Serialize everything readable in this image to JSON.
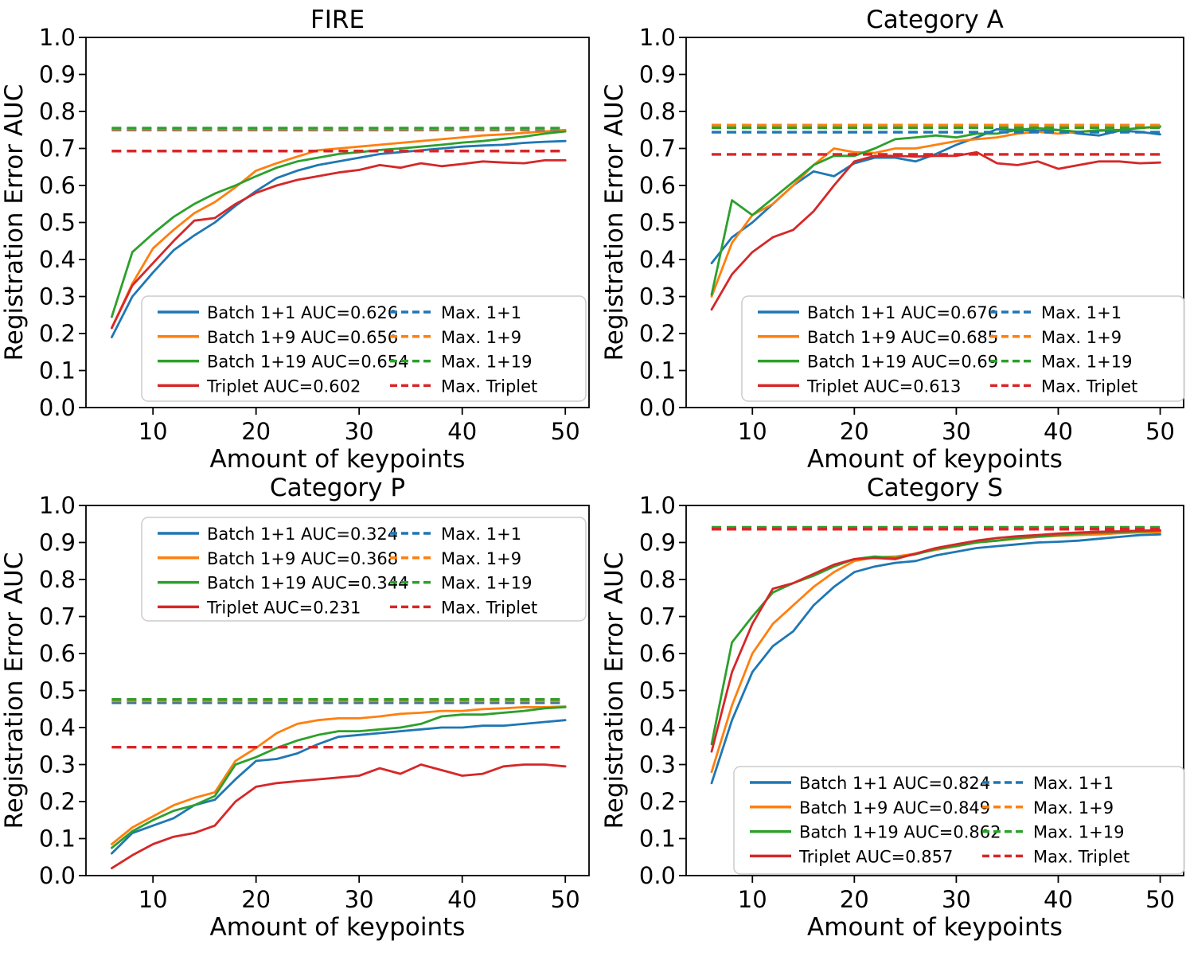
{
  "figure": {
    "background": "#ffffff"
  },
  "colors": {
    "batch11": "#1f77b4",
    "batch19": "#ff7f0e",
    "batch119": "#2ca02c",
    "triplet": "#d62728"
  },
  "chart_data": [
    {
      "type": "line",
      "title": "FIRE",
      "xlabel": "Amount of keypoints",
      "ylabel": "Registration Error AUC",
      "xlim": [
        3.5,
        52.3
      ],
      "ylim": [
        0,
        1
      ],
      "grid": false,
      "legend_position": "lower right",
      "xticks": [
        10,
        20,
        30,
        40,
        50
      ],
      "xticklabels": [
        "10",
        "20",
        "30",
        "40",
        "50"
      ],
      "yticks": [
        0.0,
        0.1,
        0.2,
        0.3,
        0.4,
        0.5,
        0.6,
        0.7,
        0.8,
        0.9,
        1.0
      ],
      "yticklabels": [
        "0.0",
        "0.1",
        "0.2",
        "0.3",
        "0.4",
        "0.5",
        "0.6",
        "0.7",
        "0.8",
        "0.9",
        "1.0"
      ],
      "x": [
        6,
        8,
        10,
        12,
        14,
        16,
        18,
        20,
        22,
        24,
        26,
        28,
        30,
        32,
        34,
        36,
        38,
        40,
        42,
        44,
        46,
        48,
        50
      ],
      "series": [
        {
          "name": "Batch 1+1 AUC=0.626",
          "color": "#1f77b4",
          "values": [
            0.19,
            0.3,
            0.365,
            0.425,
            0.465,
            0.5,
            0.545,
            0.585,
            0.62,
            0.64,
            0.655,
            0.665,
            0.675,
            0.685,
            0.69,
            0.695,
            0.7,
            0.705,
            0.708,
            0.71,
            0.715,
            0.718,
            0.72
          ]
        },
        {
          "name": "Batch 1+9 AUC=0.656",
          "color": "#ff7f0e",
          "values": [
            0.215,
            0.335,
            0.43,
            0.48,
            0.525,
            0.555,
            0.595,
            0.64,
            0.66,
            0.678,
            0.695,
            0.7,
            0.705,
            0.71,
            0.715,
            0.72,
            0.725,
            0.73,
            0.735,
            0.738,
            0.742,
            0.746,
            0.75
          ]
        },
        {
          "name": "Batch 1+19 AUC=0.654",
          "color": "#2ca02c",
          "values": [
            0.245,
            0.42,
            0.47,
            0.515,
            0.55,
            0.578,
            0.6,
            0.625,
            0.648,
            0.665,
            0.675,
            0.685,
            0.69,
            0.696,
            0.7,
            0.705,
            0.71,
            0.716,
            0.72,
            0.726,
            0.732,
            0.74,
            0.746
          ]
        },
        {
          "name": "Triplet AUC=0.602",
          "color": "#d62728",
          "values": [
            0.215,
            0.33,
            0.39,
            0.45,
            0.505,
            0.512,
            0.55,
            0.58,
            0.6,
            0.615,
            0.625,
            0.635,
            0.642,
            0.655,
            0.648,
            0.66,
            0.652,
            0.658,
            0.665,
            0.662,
            0.66,
            0.668,
            0.668
          ]
        }
      ],
      "max_lines": [
        {
          "name": "Max. 1+1",
          "color": "#1f77b4",
          "value": 0.75
        },
        {
          "name": "Max. 1+9",
          "color": "#ff7f0e",
          "value": 0.752
        },
        {
          "name": "Max. 1+19",
          "color": "#2ca02c",
          "value": 0.755
        },
        {
          "name": "Max. Triplet",
          "color": "#d62728",
          "value": 0.693
        }
      ]
    },
    {
      "type": "line",
      "title": "Category A",
      "xlabel": "Amount of keypoints",
      "ylabel": "Registration Error AUC",
      "xlim": [
        3.5,
        52.3
      ],
      "ylim": [
        0,
        1
      ],
      "grid": false,
      "legend_position": "lower right",
      "xticks": [
        10,
        20,
        30,
        40,
        50
      ],
      "xticklabels": [
        "10",
        "20",
        "30",
        "40",
        "50"
      ],
      "yticks": [
        0.0,
        0.1,
        0.2,
        0.3,
        0.4,
        0.5,
        0.6,
        0.7,
        0.8,
        0.9,
        1.0
      ],
      "yticklabels": [
        "0.0",
        "0.1",
        "0.2",
        "0.3",
        "0.4",
        "0.5",
        "0.6",
        "0.7",
        "0.8",
        "0.9",
        "1.0"
      ],
      "x": [
        6,
        8,
        10,
        12,
        14,
        16,
        18,
        20,
        22,
        24,
        26,
        28,
        30,
        32,
        34,
        36,
        38,
        40,
        42,
        44,
        46,
        48,
        50
      ],
      "series": [
        {
          "name": "Batch 1+1 AUC=0.676",
          "color": "#1f77b4",
          "values": [
            0.39,
            0.46,
            0.5,
            0.55,
            0.6,
            0.638,
            0.625,
            0.66,
            0.675,
            0.675,
            0.665,
            0.685,
            0.71,
            0.73,
            0.752,
            0.75,
            0.748,
            0.75,
            0.74,
            0.735,
            0.748,
            0.745,
            0.738
          ]
        },
        {
          "name": "Batch 1+9 AUC=0.685",
          "color": "#ff7f0e",
          "values": [
            0.3,
            0.445,
            0.52,
            0.55,
            0.6,
            0.655,
            0.7,
            0.69,
            0.688,
            0.7,
            0.7,
            0.71,
            0.72,
            0.725,
            0.73,
            0.74,
            0.745,
            0.74,
            0.745,
            0.75,
            0.75,
            0.755,
            0.758
          ]
        },
        {
          "name": "Batch 1+19 AUC=0.69",
          "color": "#2ca02c",
          "values": [
            0.305,
            0.56,
            0.52,
            0.565,
            0.61,
            0.655,
            0.68,
            0.68,
            0.7,
            0.725,
            0.73,
            0.735,
            0.73,
            0.74,
            0.74,
            0.75,
            0.755,
            0.75,
            0.745,
            0.748,
            0.75,
            0.755,
            0.76
          ]
        },
        {
          "name": "Triplet AUC=0.613",
          "color": "#d62728",
          "values": [
            0.265,
            0.36,
            0.42,
            0.46,
            0.48,
            0.53,
            0.6,
            0.665,
            0.68,
            0.68,
            0.678,
            0.68,
            0.68,
            0.69,
            0.66,
            0.655,
            0.665,
            0.645,
            0.655,
            0.665,
            0.665,
            0.66,
            0.662
          ]
        }
      ],
      "max_lines": [
        {
          "name": "Max. 1+1",
          "color": "#1f77b4",
          "value": 0.744
        },
        {
          "name": "Max. 1+9",
          "color": "#ff7f0e",
          "value": 0.763
        },
        {
          "name": "Max. 1+19",
          "color": "#2ca02c",
          "value": 0.756
        },
        {
          "name": "Max. Triplet",
          "color": "#d62728",
          "value": 0.684
        }
      ]
    },
    {
      "type": "line",
      "title": "Category P",
      "xlabel": "Amount of keypoints",
      "ylabel": "Registration Error AUC",
      "xlim": [
        3.5,
        52.3
      ],
      "ylim": [
        0,
        1
      ],
      "grid": false,
      "legend_position": "upper right",
      "xticks": [
        10,
        20,
        30,
        40,
        50
      ],
      "xticklabels": [
        "10",
        "20",
        "30",
        "40",
        "50"
      ],
      "yticks": [
        0.0,
        0.1,
        0.2,
        0.3,
        0.4,
        0.5,
        0.6,
        0.7,
        0.8,
        0.9,
        1.0
      ],
      "yticklabels": [
        "0.0",
        "0.1",
        "0.2",
        "0.3",
        "0.4",
        "0.5",
        "0.6",
        "0.7",
        "0.8",
        "0.9",
        "1.0"
      ],
      "x": [
        6,
        8,
        10,
        12,
        14,
        16,
        18,
        20,
        22,
        24,
        26,
        28,
        30,
        32,
        34,
        36,
        38,
        40,
        42,
        44,
        46,
        48,
        50
      ],
      "series": [
        {
          "name": "Batch 1+1 AUC=0.324",
          "color": "#1f77b4",
          "values": [
            0.06,
            0.115,
            0.135,
            0.155,
            0.19,
            0.205,
            0.26,
            0.31,
            0.315,
            0.33,
            0.355,
            0.375,
            0.38,
            0.385,
            0.39,
            0.395,
            0.4,
            0.4,
            0.405,
            0.405,
            0.41,
            0.415,
            0.42
          ]
        },
        {
          "name": "Batch 1+9 AUC=0.368",
          "color": "#ff7f0e",
          "values": [
            0.085,
            0.13,
            0.16,
            0.19,
            0.21,
            0.225,
            0.31,
            0.345,
            0.385,
            0.41,
            0.42,
            0.425,
            0.425,
            0.43,
            0.437,
            0.44,
            0.445,
            0.445,
            0.45,
            0.452,
            0.455,
            0.455,
            0.457
          ]
        },
        {
          "name": "Batch 1+19 AUC=0.344",
          "color": "#2ca02c",
          "values": [
            0.075,
            0.12,
            0.15,
            0.175,
            0.19,
            0.215,
            0.3,
            0.32,
            0.345,
            0.365,
            0.38,
            0.39,
            0.39,
            0.395,
            0.4,
            0.41,
            0.43,
            0.435,
            0.435,
            0.44,
            0.445,
            0.452,
            0.455
          ]
        },
        {
          "name": "Triplet AUC=0.231",
          "color": "#d62728",
          "values": [
            0.02,
            0.055,
            0.085,
            0.105,
            0.115,
            0.135,
            0.2,
            0.24,
            0.25,
            0.255,
            0.26,
            0.265,
            0.27,
            0.29,
            0.275,
            0.3,
            0.285,
            0.27,
            0.275,
            0.295,
            0.3,
            0.3,
            0.295
          ]
        }
      ],
      "max_lines": [
        {
          "name": "Max. 1+1",
          "color": "#1f77b4",
          "value": 0.467
        },
        {
          "name": "Max. 1+9",
          "color": "#ff7f0e",
          "value": 0.472
        },
        {
          "name": "Max. 1+19",
          "color": "#2ca02c",
          "value": 0.476
        },
        {
          "name": "Max. Triplet",
          "color": "#d62728",
          "value": 0.347
        }
      ]
    },
    {
      "type": "line",
      "title": "Category S",
      "xlabel": "Amount of keypoints",
      "ylabel": "Registration Error AUC",
      "xlim": [
        3.5,
        52.3
      ],
      "ylim": [
        0,
        1
      ],
      "grid": false,
      "legend_position": "lower right",
      "xticks": [
        10,
        20,
        30,
        40,
        50
      ],
      "xticklabels": [
        "10",
        "20",
        "30",
        "40",
        "50"
      ],
      "yticks": [
        0.0,
        0.1,
        0.2,
        0.3,
        0.4,
        0.5,
        0.6,
        0.7,
        0.8,
        0.9,
        1.0
      ],
      "yticklabels": [
        "0.0",
        "0.1",
        "0.2",
        "0.3",
        "0.4",
        "0.5",
        "0.6",
        "0.7",
        "0.8",
        "0.9",
        "1.0"
      ],
      "x": [
        6,
        8,
        10,
        12,
        14,
        16,
        18,
        20,
        22,
        24,
        26,
        28,
        30,
        32,
        34,
        36,
        38,
        40,
        42,
        44,
        46,
        48,
        50
      ],
      "series": [
        {
          "name": "Batch 1+1 AUC=0.824",
          "color": "#1f77b4",
          "values": [
            0.25,
            0.42,
            0.55,
            0.62,
            0.66,
            0.73,
            0.78,
            0.82,
            0.835,
            0.845,
            0.85,
            0.865,
            0.875,
            0.885,
            0.89,
            0.895,
            0.9,
            0.902,
            0.905,
            0.91,
            0.915,
            0.92,
            0.922
          ]
        },
        {
          "name": "Batch 1+9 AUC=0.849",
          "color": "#ff7f0e",
          "values": [
            0.28,
            0.46,
            0.6,
            0.68,
            0.73,
            0.78,
            0.82,
            0.85,
            0.86,
            0.862,
            0.87,
            0.88,
            0.89,
            0.9,
            0.905,
            0.91,
            0.915,
            0.918,
            0.92,
            0.922,
            0.925,
            0.927,
            0.928
          ]
        },
        {
          "name": "Batch 1+19 AUC=0.862",
          "color": "#2ca02c",
          "values": [
            0.355,
            0.63,
            0.7,
            0.765,
            0.79,
            0.81,
            0.835,
            0.855,
            0.862,
            0.858,
            0.868,
            0.882,
            0.89,
            0.9,
            0.905,
            0.912,
            0.916,
            0.92,
            0.924,
            0.926,
            0.928,
            0.93,
            0.932
          ]
        },
        {
          "name": "Triplet AUC=0.857",
          "color": "#d62728",
          "values": [
            0.335,
            0.55,
            0.68,
            0.775,
            0.79,
            0.815,
            0.84,
            0.855,
            0.858,
            0.855,
            0.87,
            0.885,
            0.895,
            0.905,
            0.912,
            0.917,
            0.92,
            0.924,
            0.927,
            0.929,
            0.93,
            0.932,
            0.933
          ]
        }
      ],
      "max_lines": [
        {
          "name": "Max. 1+1",
          "color": "#1f77b4",
          "value": 0.937
        },
        {
          "name": "Max. 1+9",
          "color": "#ff7f0e",
          "value": 0.939
        },
        {
          "name": "Max. 1+19",
          "color": "#2ca02c",
          "value": 0.941
        },
        {
          "name": "Max. Triplet",
          "color": "#d62728",
          "value": 0.936
        }
      ]
    }
  ]
}
